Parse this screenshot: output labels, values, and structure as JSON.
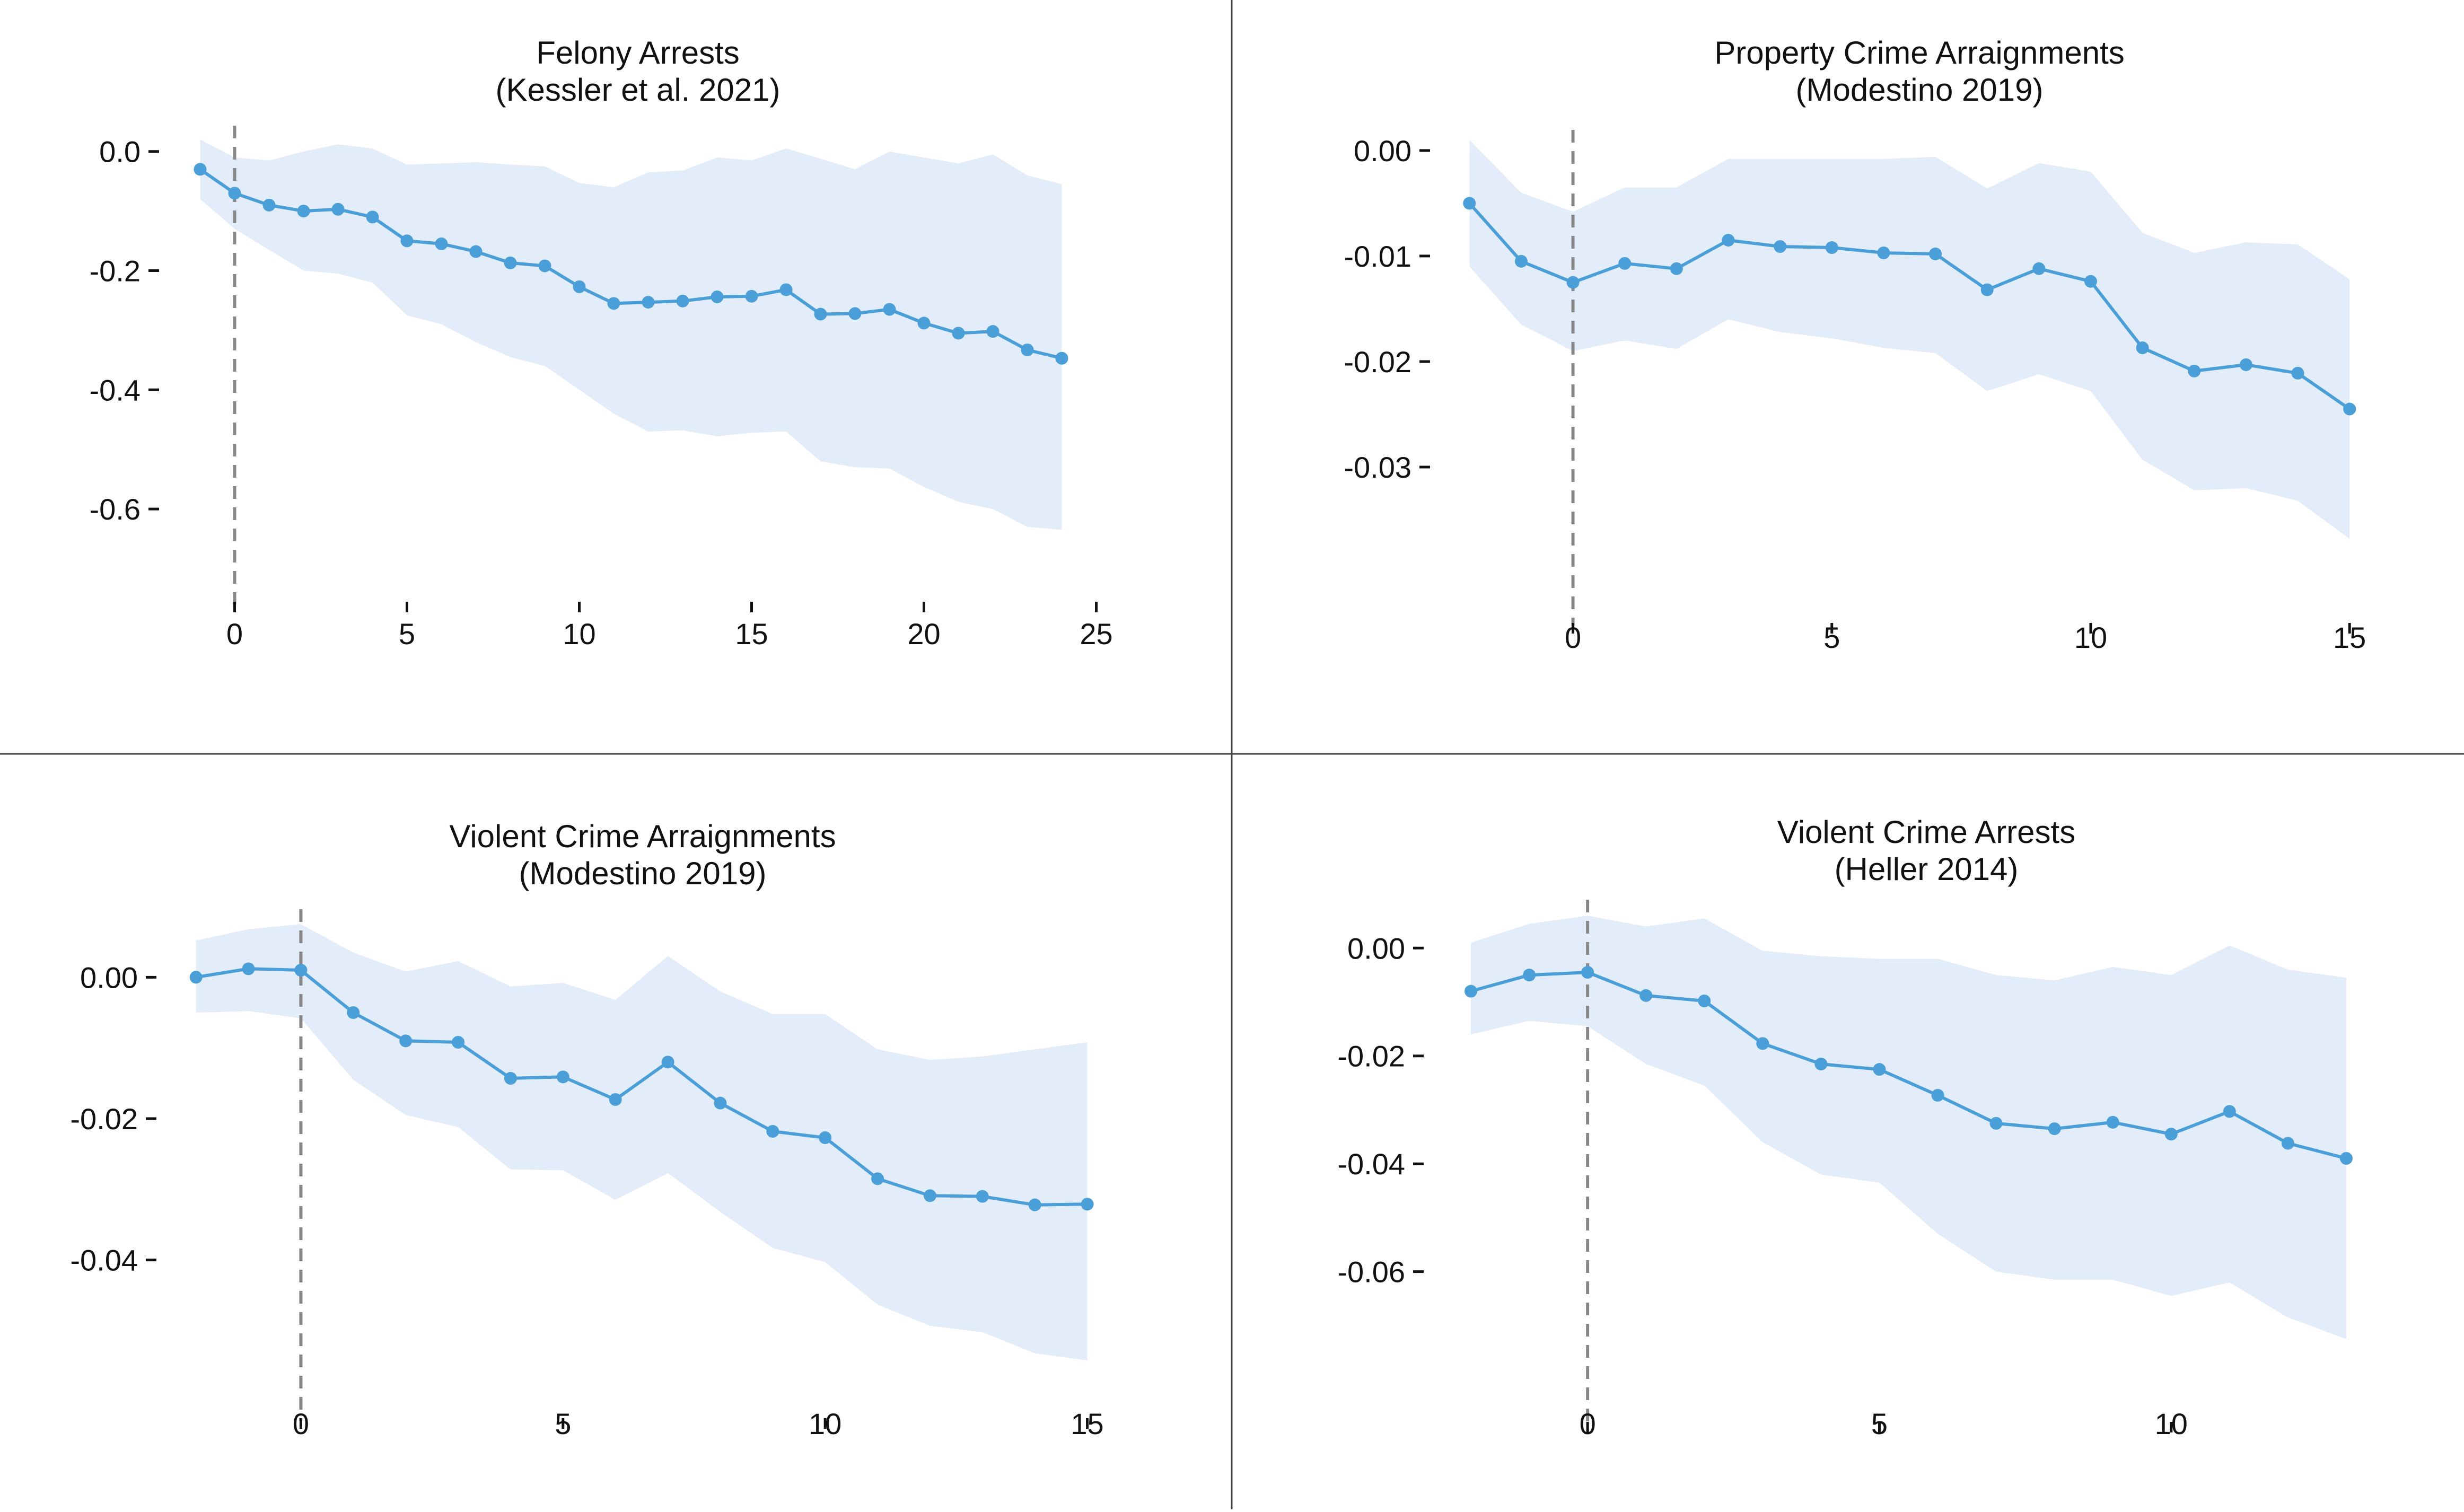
{
  "figure": {
    "colors": {
      "line": "#4a9fd8",
      "band": "#e3ecf9",
      "zero_line": "#888888",
      "divider": "#444444",
      "text": "#111111"
    }
  },
  "chart_data": [
    {
      "type": "line",
      "title": "Felony Arrests",
      "subtitle": "(Kessler et al. 2021)",
      "xlabel": "",
      "ylabel": "",
      "xlim": [
        -1.5,
        25.5
      ],
      "ylim": [
        -0.68,
        0.03
      ],
      "xticks": [
        0,
        5,
        10,
        15,
        20,
        25
      ],
      "xtick_labels": [
        "0",
        "5",
        "10",
        "15",
        "20",
        "25"
      ],
      "yticks": [
        0.0,
        -0.2,
        -0.4,
        -0.6
      ],
      "ytick_labels": [
        "0.0",
        "-0.2",
        "-0.4",
        "-0.6"
      ],
      "event_line_x": 0,
      "grid": false,
      "series": [
        {
          "x": [
            -1,
            0,
            1,
            2,
            3,
            4,
            5,
            6,
            7,
            8,
            9,
            10,
            11,
            12,
            13,
            14,
            15,
            16,
            17,
            18,
            19,
            20,
            21,
            22,
            23,
            24
          ],
          "y": [
            -0.03,
            -0.07,
            -0.09,
            -0.1,
            -0.097,
            -0.11,
            -0.15,
            -0.155,
            -0.168,
            -0.187,
            -0.192,
            -0.227,
            -0.255,
            -0.253,
            -0.251,
            -0.244,
            -0.243,
            -0.232,
            -0.273,
            -0.272,
            -0.265,
            -0.288,
            -0.305,
            -0.302,
            -0.333,
            -0.347
          ],
          "lower": [
            -0.08,
            -0.13,
            -0.165,
            -0.2,
            -0.205,
            -0.22,
            -0.275,
            -0.29,
            -0.32,
            -0.345,
            -0.36,
            -0.4,
            -0.44,
            -0.47,
            -0.468,
            -0.478,
            -0.472,
            -0.47,
            -0.52,
            -0.53,
            -0.532,
            -0.563,
            -0.588,
            -0.6,
            -0.63,
            -0.635
          ],
          "upper": [
            0.02,
            -0.01,
            -0.015,
            0.0,
            0.012,
            0.005,
            -0.022,
            -0.02,
            -0.018,
            -0.022,
            -0.025,
            -0.053,
            -0.06,
            -0.035,
            -0.032,
            -0.01,
            -0.015,
            0.005,
            -0.012,
            -0.03,
            0.0,
            -0.01,
            -0.02,
            -0.005,
            -0.04,
            -0.055
          ]
        }
      ]
    },
    {
      "type": "line",
      "title": "Property Crime Arraignments",
      "subtitle": "(Modestino 2019)",
      "xlabel": "",
      "ylabel": "",
      "xlim": [
        -2.3,
        15.5
      ],
      "ylim": [
        -0.0405,
        0.0012
      ],
      "xticks": [
        0,
        5,
        10,
        15
      ],
      "xtick_labels": [
        "0",
        "5",
        "10",
        "15"
      ],
      "yticks": [
        0.0,
        -0.01,
        -0.02,
        -0.03
      ],
      "ytick_labels": [
        "0.00",
        "-0.01",
        "-0.02",
        "-0.03"
      ],
      "event_line_x": 0,
      "grid": false,
      "series": [
        {
          "x": [
            -2,
            -1,
            0,
            1,
            2,
            3,
            4,
            5,
            6,
            7,
            8,
            9,
            10,
            11,
            12,
            13,
            14,
            15
          ],
          "y": [
            -0.005,
            -0.0105,
            -0.0125,
            -0.0107,
            -0.0112,
            -0.0085,
            -0.0091,
            -0.0092,
            -0.0097,
            -0.0098,
            -0.0132,
            -0.0112,
            -0.0124,
            -0.0187,
            -0.0209,
            -0.0203,
            -0.0211,
            -0.0245
          ],
          "lower": [
            -0.011,
            -0.0165,
            -0.019,
            -0.018,
            -0.0188,
            -0.016,
            -0.0172,
            -0.0178,
            -0.0187,
            -0.0192,
            -0.0228,
            -0.0212,
            -0.0228,
            -0.0293,
            -0.0322,
            -0.032,
            -0.0332,
            -0.0368
          ],
          "upper": [
            0.001,
            -0.004,
            -0.0058,
            -0.0035,
            -0.0035,
            -0.0008,
            -0.0008,
            -0.0008,
            -0.0008,
            -0.0006,
            -0.0036,
            -0.0012,
            -0.002,
            -0.0078,
            -0.0097,
            -0.0087,
            -0.0089,
            -0.0122
          ]
        }
      ]
    },
    {
      "type": "line",
      "title": "Violent Crime Arraignments",
      "subtitle": "(Modestino 2019)",
      "xlabel": "",
      "ylabel": "",
      "xlim": [
        -2.3,
        15.5
      ],
      "ylim": [
        -0.056,
        0.0085
      ],
      "xticks": [
        0,
        5,
        10,
        15
      ],
      "xtick_labels": [
        "0",
        "5",
        "10",
        "15"
      ],
      "yticks": [
        0.0,
        -0.02,
        -0.04
      ],
      "ytick_labels": [
        "0.00",
        "-0.02",
        "-0.04"
      ],
      "event_line_x": 0,
      "grid": false,
      "series": [
        {
          "x": [
            -2,
            -1,
            0,
            1,
            2,
            3,
            4,
            5,
            6,
            7,
            8,
            9,
            10,
            11,
            12,
            13,
            14,
            15
          ],
          "y": [
            0.0,
            0.0012,
            0.001,
            -0.005,
            -0.009,
            -0.0092,
            -0.0143,
            -0.0141,
            -0.0173,
            -0.012,
            -0.0178,
            -0.0218,
            -0.0227,
            -0.0285,
            -0.0309,
            -0.031,
            -0.0322,
            -0.0321
          ],
          "lower": [
            -0.005,
            -0.0048,
            -0.0058,
            -0.0145,
            -0.0195,
            -0.0212,
            -0.0272,
            -0.0273,
            -0.0315,
            -0.0277,
            -0.0332,
            -0.0383,
            -0.0403,
            -0.0463,
            -0.0493,
            -0.0502,
            -0.0532,
            -0.0542
          ],
          "upper": [
            0.0052,
            0.0068,
            0.0075,
            0.0035,
            0.0008,
            0.0023,
            -0.0013,
            -0.0008,
            -0.0032,
            0.003,
            -0.002,
            -0.0052,
            -0.0052,
            -0.0102,
            -0.0117,
            -0.0112,
            -0.0102,
            -0.0092
          ]
        }
      ]
    },
    {
      "type": "line",
      "title": "Violent Crime Arrests",
      "subtitle": "(Heller 2014)",
      "xlabel": "",
      "ylabel": "",
      "xlim": [
        -2.4,
        13.5
      ],
      "ylim": [
        -0.0795,
        0.0075
      ],
      "xticks": [
        0,
        5,
        10
      ],
      "xtick_labels": [
        "0",
        "5",
        "10"
      ],
      "yticks": [
        0.0,
        -0.02,
        -0.04,
        -0.06
      ],
      "ytick_labels": [
        "0.00",
        "-0.02",
        "-0.04",
        "-0.06"
      ],
      "event_line_x": 0,
      "grid": false,
      "series": [
        {
          "x": [
            -2,
            -1,
            0,
            1,
            2,
            3,
            4,
            5,
            6,
            7,
            8,
            9,
            10,
            11,
            12,
            13
          ],
          "y": [
            -0.008,
            -0.005,
            -0.0045,
            -0.0088,
            -0.0098,
            -0.0177,
            -0.0215,
            -0.0225,
            -0.0273,
            -0.0325,
            -0.0335,
            -0.0323,
            -0.0345,
            -0.0303,
            -0.0362,
            -0.039
          ],
          "lower": [
            -0.016,
            -0.0135,
            -0.0145,
            -0.0215,
            -0.0255,
            -0.036,
            -0.042,
            -0.0435,
            -0.053,
            -0.06,
            -0.0615,
            -0.0615,
            -0.0645,
            -0.062,
            -0.0685,
            -0.0725
          ],
          "upper": [
            0.001,
            0.0045,
            0.006,
            0.004,
            0.0055,
            -0.0005,
            -0.0015,
            -0.002,
            -0.002,
            -0.005,
            -0.006,
            -0.0035,
            -0.005,
            0.0005,
            -0.004,
            -0.0055
          ]
        }
      ]
    }
  ]
}
